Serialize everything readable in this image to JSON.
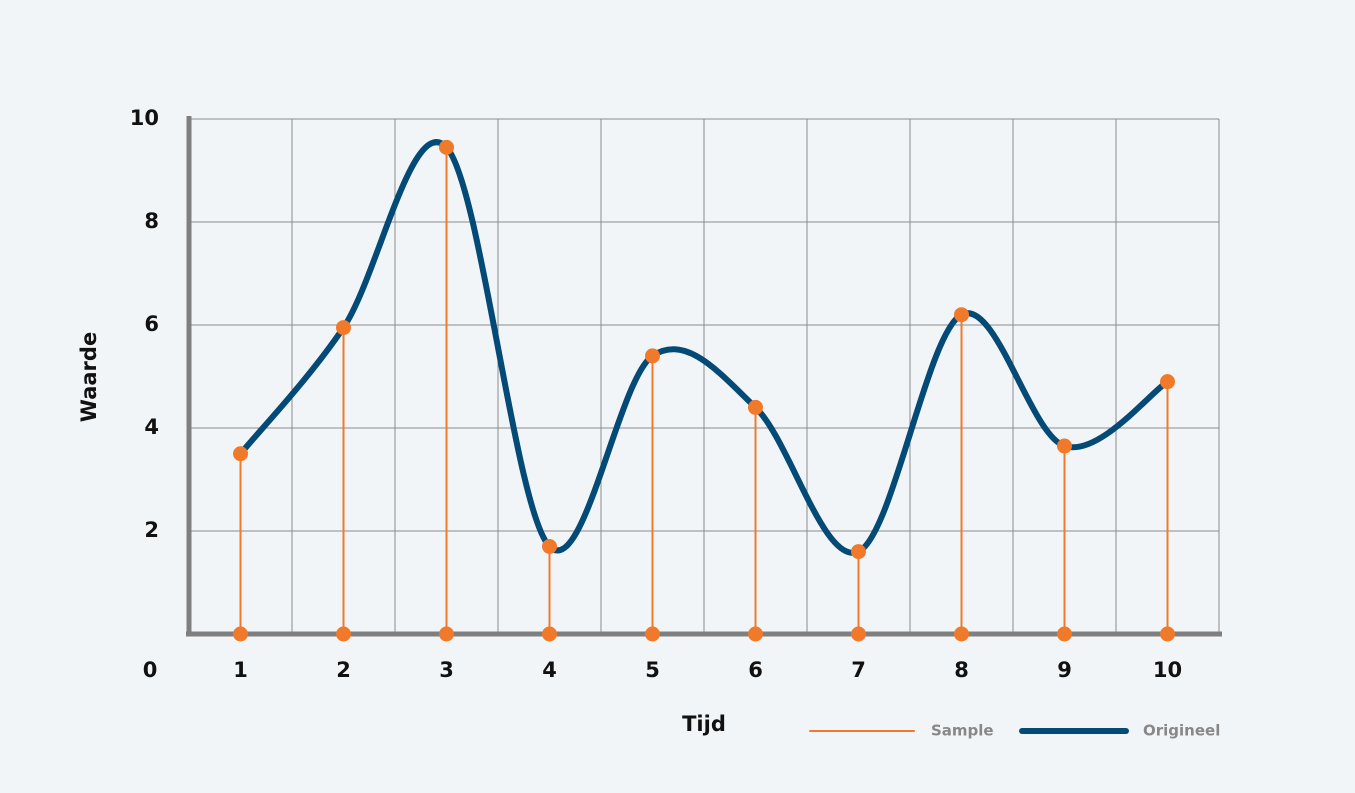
{
  "chart_data": {
    "type": "stem",
    "x_label": "Tijd",
    "y_label": "Waarde",
    "categories": [
      "1",
      "2",
      "3",
      "4",
      "5",
      "6",
      "7",
      "8",
      "9",
      "10"
    ],
    "series": [
      {
        "name": "Sample",
        "color": "#f07a2a",
        "values": [
          3.5,
          5.95,
          9.45,
          1.7,
          5.4,
          4.4,
          1.6,
          6.2,
          3.65,
          4.9
        ]
      },
      {
        "name": "Origineel",
        "color": "#044a76",
        "values": [
          3.5,
          5.95,
          9.45,
          1.7,
          5.4,
          4.4,
          1.6,
          6.2,
          3.65,
          4.9
        ]
      }
    ],
    "ylim": [
      0,
      10
    ],
    "yticks": [
      0,
      2,
      4,
      6,
      8,
      10
    ],
    "grid": true,
    "legend": "bottom-right"
  }
}
